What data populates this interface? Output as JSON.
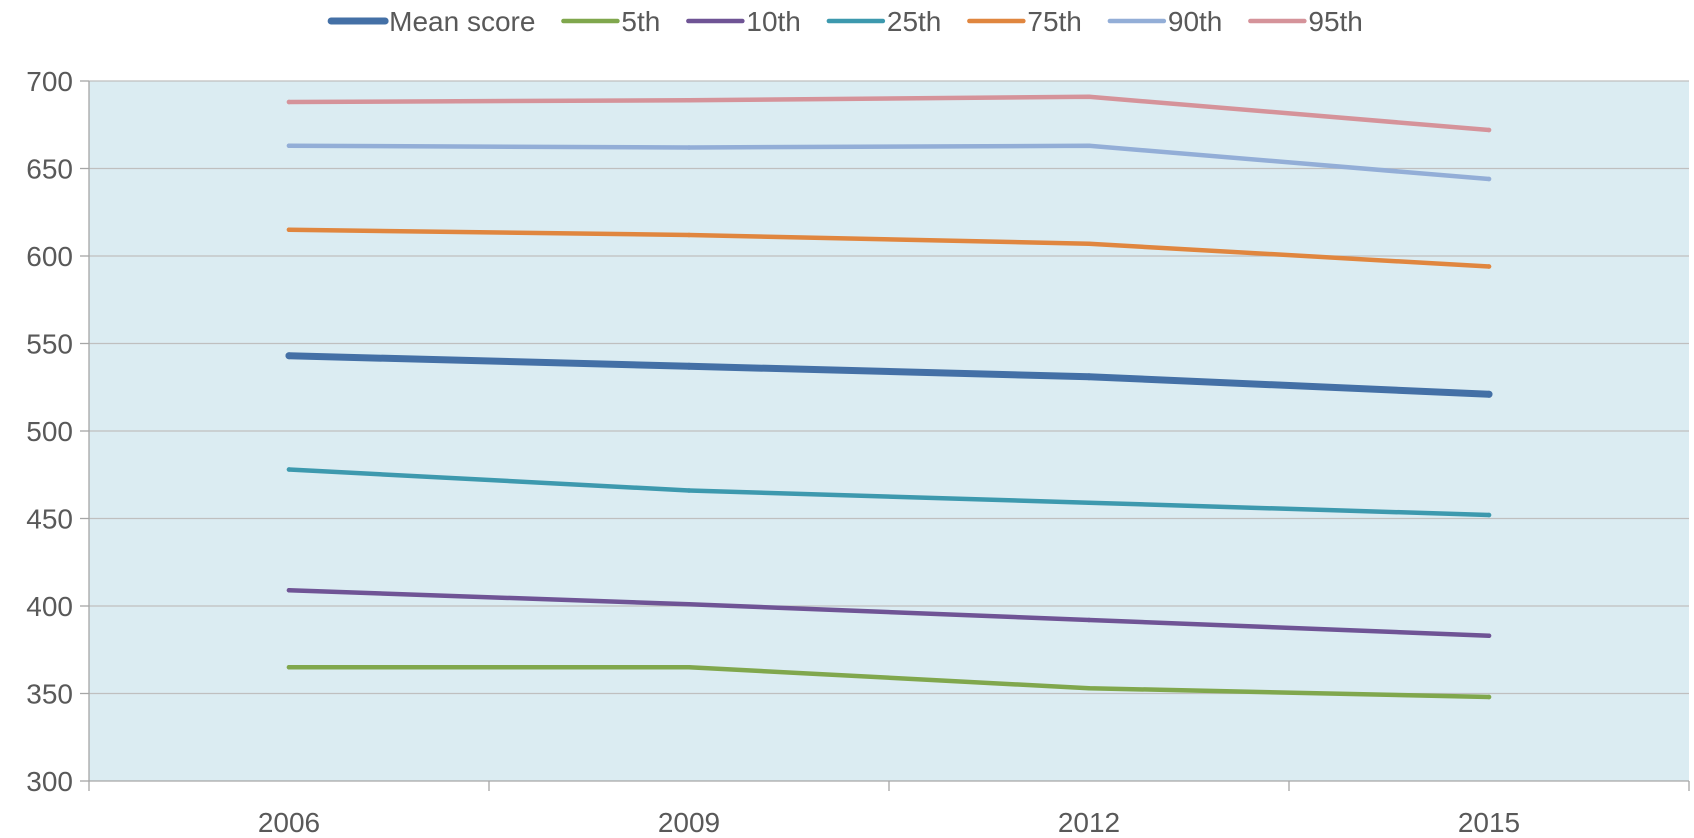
{
  "chart_data": {
    "type": "line",
    "categories": [
      "2006",
      "2009",
      "2012",
      "2015"
    ],
    "ylim": [
      300,
      700
    ],
    "yticks": [
      300,
      350,
      400,
      450,
      500,
      550,
      600,
      650,
      700
    ],
    "grid": true,
    "legend_position": "top",
    "plot_background": "#DBECF2",
    "series": [
      {
        "name": "Mean score",
        "color": "#4470A6",
        "values": [
          543,
          537,
          531,
          521
        ],
        "emphasis": true
      },
      {
        "name": "5th",
        "color": "#80A74D",
        "values": [
          365,
          365,
          353,
          348
        ]
      },
      {
        "name": "10th",
        "color": "#6F5495",
        "values": [
          409,
          401,
          392,
          383
        ]
      },
      {
        "name": "25th",
        "color": "#3D99AE",
        "values": [
          478,
          466,
          459,
          452
        ]
      },
      {
        "name": "75th",
        "color": "#E0863F",
        "values": [
          615,
          612,
          607,
          594
        ]
      },
      {
        "name": "90th",
        "color": "#93AED7",
        "values": [
          663,
          662,
          663,
          644
        ]
      },
      {
        "name": "95th",
        "color": "#D5939A",
        "values": [
          688,
          689,
          691,
          672
        ]
      }
    ]
  }
}
